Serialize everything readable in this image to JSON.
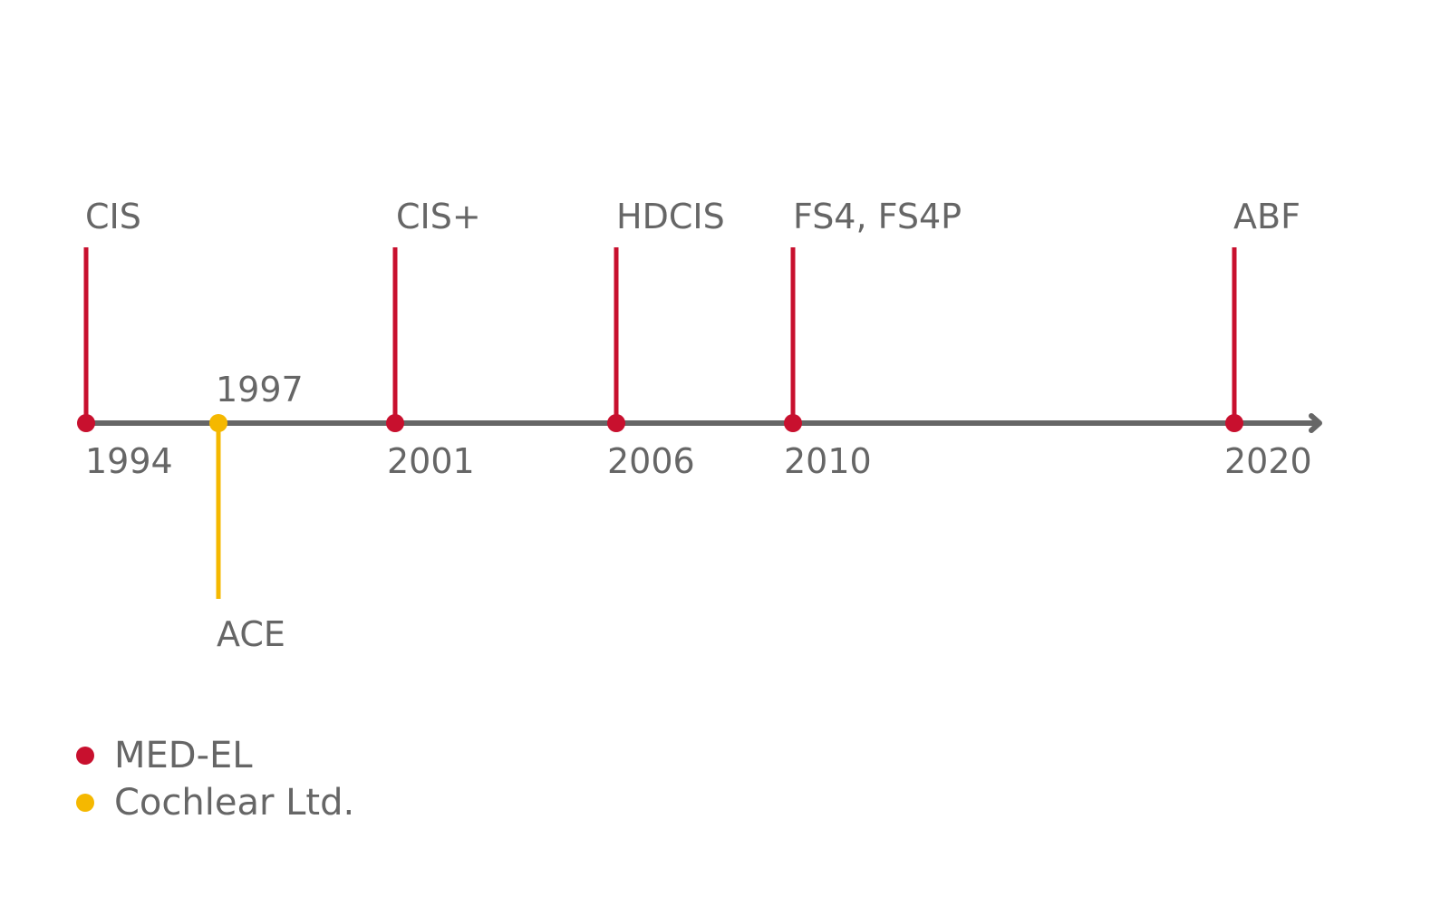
{
  "colors": {
    "axis": "#666666",
    "text": "#666666",
    "med_el": "#c8102e",
    "cochlear": "#f5b800"
  },
  "events": [
    {
      "year": "1994",
      "label": "CIS",
      "company": "med_el"
    },
    {
      "year": "1997",
      "label": "ACE",
      "company": "cochlear"
    },
    {
      "year": "2001",
      "label": "CIS+",
      "company": "med_el"
    },
    {
      "year": "2006",
      "label": "HDCIS",
      "company": "med_el"
    },
    {
      "year": "2010",
      "label": "FS4, FS4P",
      "company": "med_el"
    },
    {
      "year": "2020",
      "label": "ABF",
      "company": "med_el"
    }
  ],
  "legend": {
    "items": [
      {
        "label": "MED-EL",
        "color": "#c8102e"
      },
      {
        "label": "Cochlear Ltd.",
        "color": "#f5b800"
      }
    ]
  }
}
